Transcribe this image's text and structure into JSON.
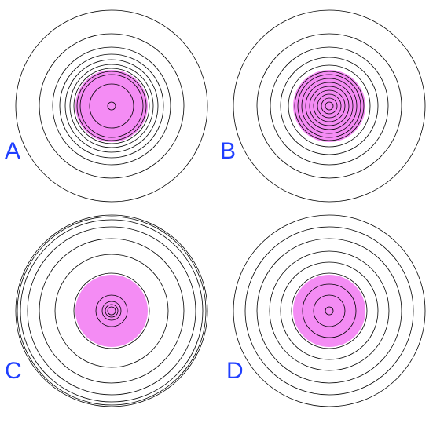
{
  "colors": {
    "core_fill": "#f48cf4",
    "ring_stroke": "#000000",
    "label": "#1f3fff",
    "background": "#ffffff"
  },
  "panels": [
    {
      "id": "a",
      "label": "A"
    },
    {
      "id": "b",
      "label": "B"
    },
    {
      "id": "c",
      "label": "C"
    },
    {
      "id": "d",
      "label": "D"
    }
  ]
}
